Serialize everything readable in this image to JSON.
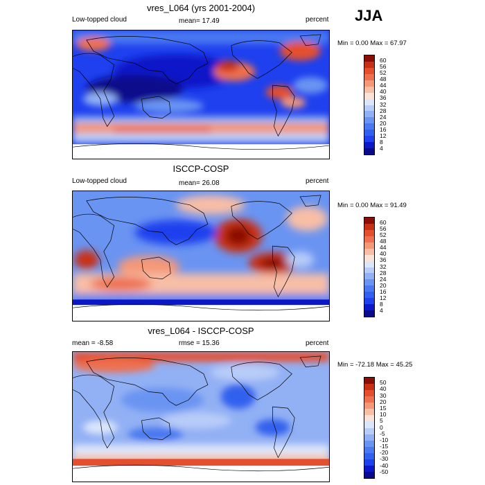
{
  "season": "JJA",
  "panels": [
    {
      "title": "vres_L064 (yrs 2001-2004)",
      "left_label": "Low-topped cloud",
      "center_label": "mean=  17.49",
      "right_label": "percent",
      "minmax": "Min =   0.00 Max =  67.97",
      "colorbar_labels": [
        "60",
        "56",
        "52",
        "48",
        "44",
        "40",
        "36",
        "32",
        "28",
        "24",
        "20",
        "16",
        "12",
        "8",
        "4"
      ],
      "colors": [
        "#0a0a8c",
        "#0a18c8",
        "#1e40ee",
        "#3060ee",
        "#4a78f0",
        "#6a94f2",
        "#92b0f4",
        "#b8ccf8",
        "#dce6fa",
        "#fbe2d6",
        "#f8bea6",
        "#f49878",
        "#ee7050",
        "#e4502e",
        "#c83014",
        "#8a0e06"
      ]
    },
    {
      "title": "ISCCP-COSP",
      "left_label": "Low-topped cloud",
      "center_label": "mean=  26.08",
      "right_label": "percent",
      "minmax": "Min =   0.00 Max =  91.49",
      "colorbar_labels": [
        "60",
        "56",
        "52",
        "48",
        "44",
        "40",
        "36",
        "32",
        "28",
        "24",
        "20",
        "16",
        "12",
        "8",
        "4"
      ],
      "colors": [
        "#0a0a8c",
        "#0a18c8",
        "#1e40ee",
        "#3060ee",
        "#4a78f0",
        "#6a94f2",
        "#92b0f4",
        "#b8ccf8",
        "#dce6fa",
        "#fbe2d6",
        "#f8bea6",
        "#f49878",
        "#ee7050",
        "#e4502e",
        "#c83014",
        "#8a0e06"
      ]
    },
    {
      "title": "vres_L064 - ISCCP-COSP",
      "left_label": "mean =  -8.58",
      "center_label": "rmse =  15.36",
      "right_label": "percent",
      "minmax": "Min = -72.18 Max =  45.25",
      "colorbar_labels": [
        "50",
        "40",
        "30",
        "20",
        "15",
        "10",
        "5",
        "0",
        "-5",
        "-10",
        "-15",
        "-20",
        "-30",
        "-40",
        "-50"
      ],
      "colors": [
        "#0a0a8c",
        "#0a18c8",
        "#1e40ee",
        "#3060ee",
        "#4a78f0",
        "#6a94f2",
        "#92b0f4",
        "#b8ccf8",
        "#dce6fa",
        "#fbe2d6",
        "#f8bea6",
        "#f49878",
        "#ee7050",
        "#e4502e",
        "#c83014",
        "#8a0e06"
      ]
    }
  ]
}
